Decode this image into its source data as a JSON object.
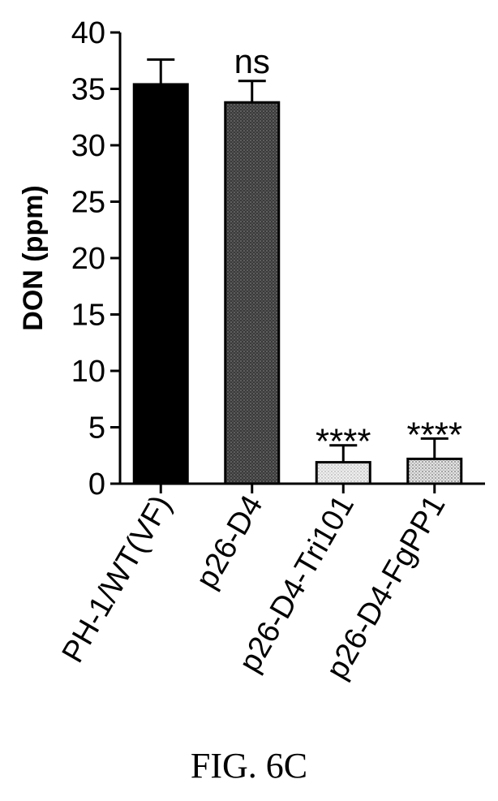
{
  "chart_data": {
    "type": "bar",
    "ylabel": "DON (ppm)",
    "xlabel": "",
    "ylim": [
      0,
      40
    ],
    "yticks": [
      0,
      5,
      10,
      15,
      20,
      25,
      30,
      35,
      40
    ],
    "categories": [
      "PH-1/WT(VF)",
      "p26-D4",
      "p26-D4-Tri101",
      "p26-D4-FgPP1"
    ],
    "values": [
      35.4,
      33.8,
      1.9,
      2.2
    ],
    "errors": [
      2.2,
      1.9,
      1.5,
      1.8
    ],
    "annotations": [
      "",
      "ns",
      "****",
      "****"
    ],
    "bar_colors": [
      "#000000",
      "#3a3a3a",
      "#d9d9d9",
      "#c4c4c4"
    ],
    "grid": false
  },
  "figure_caption": "FIG. 6C"
}
